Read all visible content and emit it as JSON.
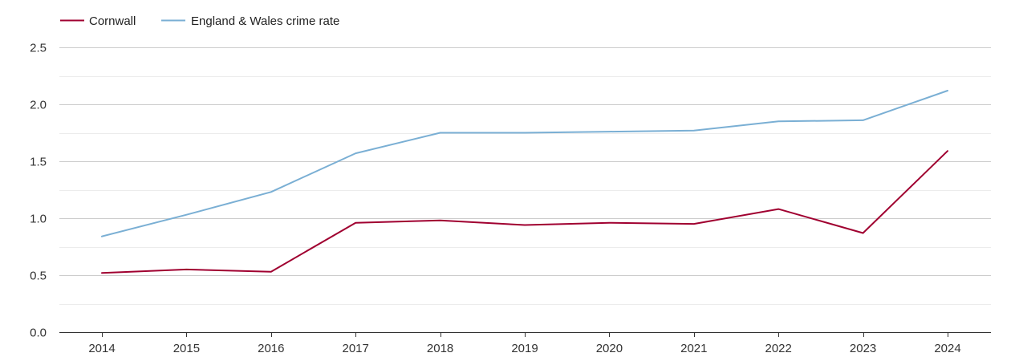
{
  "chart_data": {
    "type": "line",
    "title": "",
    "xlabel": "",
    "ylabel": "",
    "categories": [
      "2014",
      "2015",
      "2016",
      "2017",
      "2018",
      "2019",
      "2020",
      "2021",
      "2022",
      "2023",
      "2024"
    ],
    "ylim": [
      0,
      2.5
    ],
    "y_ticks": [
      "0.0",
      "0.5",
      "1.0",
      "1.5",
      "2.0",
      "2.5"
    ],
    "y_tick_values": [
      0,
      0.5,
      1.0,
      1.5,
      2.0,
      2.5
    ],
    "grid": true,
    "legend_position": "top-left",
    "series": [
      {
        "name": "Cornwall",
        "color": "#a00030",
        "values": [
          0.52,
          0.55,
          0.53,
          0.96,
          0.98,
          0.94,
          0.96,
          0.95,
          1.08,
          0.87,
          1.59
        ]
      },
      {
        "name": "England & Wales crime rate",
        "color": "#7aafd4",
        "values": [
          0.84,
          1.03,
          1.23,
          1.57,
          1.75,
          1.75,
          1.76,
          1.77,
          1.85,
          1.86,
          2.12
        ]
      }
    ]
  }
}
